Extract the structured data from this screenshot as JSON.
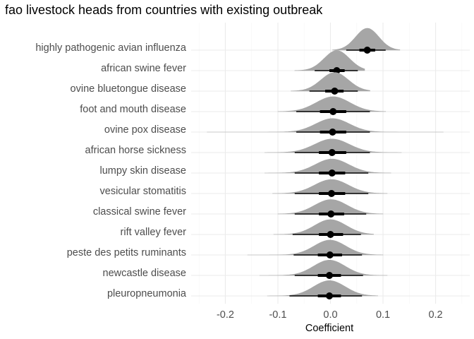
{
  "chart_data": {
    "type": "ridgeline",
    "title": "fao livestock heads from countries with existing outbreak",
    "xlabel": "Coefficient",
    "ylabel": "",
    "xlim": [
      -0.265,
      0.265
    ],
    "xticks": [
      -0.2,
      -0.1,
      0.0,
      0.1,
      0.2
    ],
    "xtick_labels": [
      "-0.2",
      "-0.1",
      "0.0",
      "0.1",
      "0.2"
    ],
    "grid": true,
    "colors": {
      "density": "#a6a6a6",
      "point": "#000000",
      "grid_major": "#ebebeb",
      "grid_minor": "#f5f5f5"
    },
    "categories": [
      {
        "name": "highly pathogenic avian influenza",
        "median": 0.07,
        "inner": [
          0.055,
          0.085
        ],
        "outer": [
          0.03,
          0.105
        ],
        "range": [
          0.004,
          0.132
        ],
        "sd": 0.022,
        "scale": 1.0
      },
      {
        "name": "african swine fever",
        "median": 0.012,
        "inner": [
          -0.002,
          0.027
        ],
        "outer": [
          -0.03,
          0.052
        ],
        "range": [
          -0.068,
          0.065
        ],
        "sd": 0.024,
        "scale": 0.92
      },
      {
        "name": "ovine bluetongue disease",
        "median": 0.008,
        "inner": [
          -0.01,
          0.025
        ],
        "outer": [
          -0.04,
          0.052
        ],
        "range": [
          -0.075,
          0.075
        ],
        "sd": 0.026,
        "scale": 0.85
      },
      {
        "name": "foot and mouth disease",
        "median": 0.005,
        "inner": [
          -0.02,
          0.03
        ],
        "outer": [
          -0.065,
          0.075
        ],
        "range": [
          -0.1,
          0.105
        ],
        "sd": 0.032,
        "scale": 0.68
      },
      {
        "name": "ovine pox disease",
        "median": 0.004,
        "inner": [
          -0.02,
          0.03
        ],
        "outer": [
          -0.065,
          0.075
        ],
        "range": [
          -0.235,
          0.215
        ],
        "sd": 0.032,
        "scale": 0.62
      },
      {
        "name": "african horse sickness",
        "median": 0.003,
        "inner": [
          -0.022,
          0.03
        ],
        "outer": [
          -0.068,
          0.075
        ],
        "range": [
          -0.125,
          0.135
        ],
        "sd": 0.033,
        "scale": 0.62
      },
      {
        "name": "lumpy skin disease",
        "median": 0.003,
        "inner": [
          -0.022,
          0.028
        ],
        "outer": [
          -0.068,
          0.072
        ],
        "range": [
          -0.125,
          0.115
        ],
        "sd": 0.032,
        "scale": 0.64
      },
      {
        "name": "vesicular stomatitis",
        "median": 0.002,
        "inner": [
          -0.022,
          0.028
        ],
        "outer": [
          -0.068,
          0.072
        ],
        "range": [
          -0.11,
          0.108
        ],
        "sd": 0.032,
        "scale": 0.64
      },
      {
        "name": "classical swine fever",
        "median": 0.001,
        "inner": [
          -0.022,
          0.026
        ],
        "outer": [
          -0.068,
          0.068
        ],
        "range": [
          -0.1,
          0.1
        ],
        "sd": 0.031,
        "scale": 0.66
      },
      {
        "name": "rift valley fever",
        "median": 0.0,
        "inner": [
          -0.022,
          0.024
        ],
        "outer": [
          -0.072,
          0.058
        ],
        "range": [
          -0.108,
          0.082
        ],
        "sd": 0.03,
        "scale": 0.68
      },
      {
        "name": "peste des petits ruminants",
        "median": -0.001,
        "inner": [
          -0.024,
          0.022
        ],
        "outer": [
          -0.07,
          0.06
        ],
        "range": [
          -0.158,
          0.1
        ],
        "sd": 0.03,
        "scale": 0.68
      },
      {
        "name": "newcastle disease",
        "median": -0.002,
        "inner": [
          -0.024,
          0.02
        ],
        "outer": [
          -0.068,
          0.062
        ],
        "range": [
          -0.135,
          0.108
        ],
        "sd": 0.03,
        "scale": 0.7
      },
      {
        "name": "pleuropneumonia",
        "median": -0.002,
        "inner": [
          -0.024,
          0.02
        ],
        "outer": [
          -0.078,
          0.06
        ],
        "range": [
          -0.12,
          0.09
        ],
        "sd": 0.03,
        "scale": 0.7
      }
    ]
  }
}
